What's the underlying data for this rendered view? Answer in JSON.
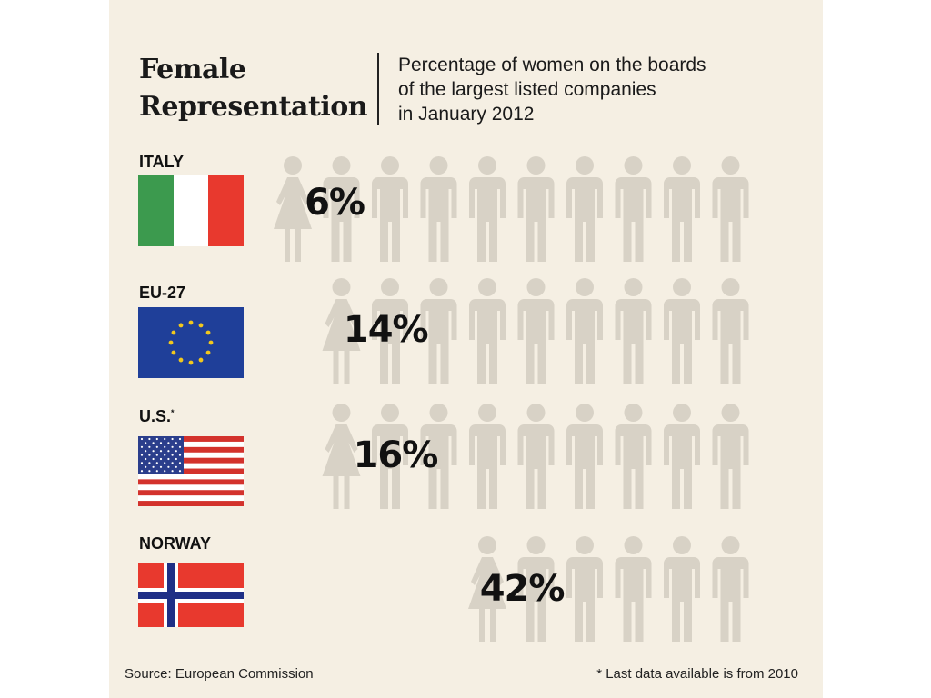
{
  "title_line1": "Female",
  "title_line2": "Representation",
  "subtitle_lines": [
    "Percentage of women on the boards",
    "of the largest listed companies",
    "in January 2012"
  ],
  "source": "Source: European Commission",
  "footnote": "* Last data available is from 2010",
  "colors": {
    "women": "#d2322d",
    "others": "#d8d2c6",
    "background": "#f5efe3"
  },
  "chart_data": {
    "type": "bar",
    "title": "Female Representation",
    "subtitle": "Percentage of women on the boards of the largest listed companies in January 2012",
    "unit": "%",
    "figures_per_row": 10,
    "categories": [
      "ITALY",
      "EU-27",
      "U.S.",
      "NORWAY"
    ],
    "category_footnote_marks": [
      "",
      "",
      "*",
      ""
    ],
    "values": [
      6,
      14,
      16,
      42
    ],
    "value_labels": [
      "6%",
      "14%",
      "16%",
      "42%"
    ],
    "flags": [
      "italy-flag",
      "eu-flag",
      "us-flag",
      "norway-flag"
    ]
  }
}
